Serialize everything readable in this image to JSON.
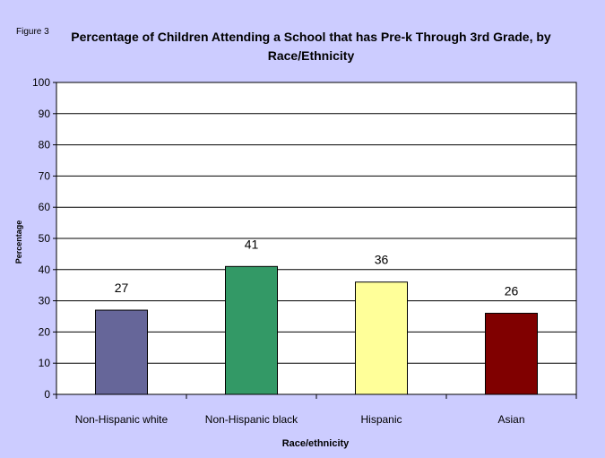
{
  "figure_label": "Figure 3",
  "chart_data": {
    "type": "bar",
    "title": "Percentage of Children Attending a School that has Pre-k Through 3rd Grade, by Race/Ethnicity",
    "title_lines": [
      "Percentage of Children Attending a School that has Pre-k Through 3rd Grade, by",
      "Race/Ethnicity"
    ],
    "xlabel": "Race/ethnicity",
    "ylabel": "Percentage",
    "categories": [
      "Non-Hispanic white",
      "Non-Hispanic black",
      "Hispanic",
      "Asian"
    ],
    "values": [
      27,
      41,
      36,
      26
    ],
    "data_labels": [
      "27",
      "41",
      "36",
      "26"
    ],
    "colors": [
      "#666699",
      "#339966",
      "#ffff99",
      "#800000"
    ],
    "ylim": [
      0,
      100
    ],
    "yticks": [
      "0",
      "10",
      "20",
      "30",
      "40",
      "50",
      "60",
      "70",
      "80",
      "90",
      "100"
    ],
    "grid": true,
    "legend": "none"
  },
  "colors": {
    "background": "#ccccff",
    "plot_area": "#ffffff",
    "gridline": "#000000"
  }
}
